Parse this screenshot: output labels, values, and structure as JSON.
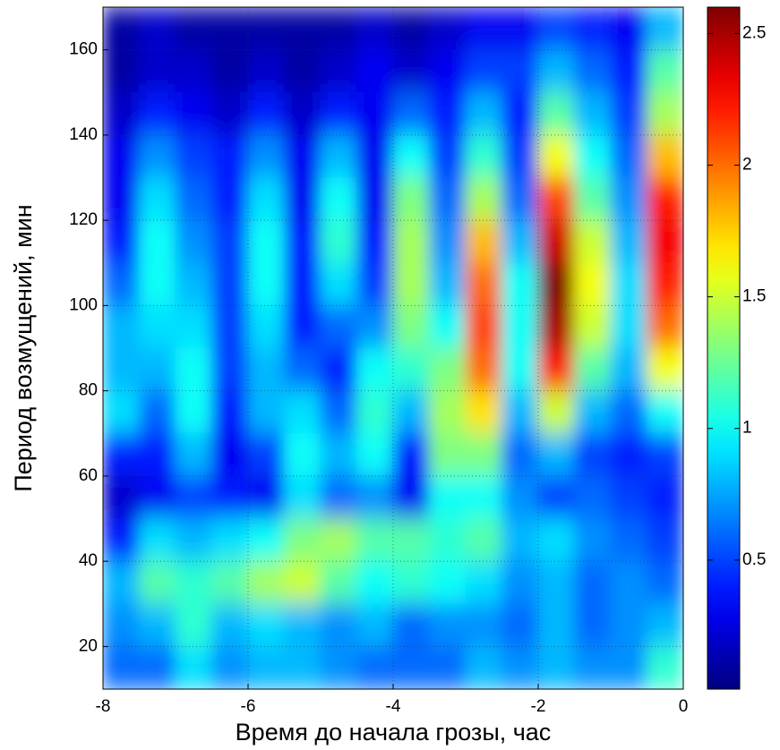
{
  "chart_data": {
    "type": "heatmap",
    "xlabel": "Время до начала грозы, час",
    "ylabel": "Период возмущений, мин",
    "xlim": [
      -8,
      0
    ],
    "xticks": [
      -8,
      -6,
      -4,
      -2,
      0
    ],
    "ylim": [
      10,
      170
    ],
    "yticks": [
      20,
      40,
      60,
      80,
      100,
      120,
      140,
      160
    ],
    "grid": true,
    "colormap": "jet",
    "clim": [
      0.01,
      2.6
    ],
    "cticks": [
      0.5,
      1,
      1.5,
      2,
      2.5
    ],
    "x": [
      -7.75,
      -7.25,
      -6.75,
      -6.25,
      -5.75,
      -5.25,
      -4.75,
      -4.25,
      -3.75,
      -3.25,
      -2.75,
      -2.25,
      -1.75,
      -1.25,
      -0.75,
      -0.25
    ],
    "y": [
      165,
      155,
      145,
      135,
      125,
      115,
      105,
      95,
      85,
      75,
      65,
      55,
      45,
      35,
      25,
      15
    ],
    "z": [
      [
        0.1,
        0.2,
        0.1,
        0.1,
        0.1,
        0.1,
        0.1,
        0.2,
        0.1,
        0.2,
        0.3,
        0.3,
        0.5,
        0.4,
        0.3,
        0.8
      ],
      [
        0.1,
        0.2,
        0.2,
        0.1,
        0.2,
        0.1,
        0.2,
        0.3,
        0.2,
        0.3,
        0.5,
        0.5,
        0.8,
        0.6,
        0.4,
        1.2
      ],
      [
        0.2,
        0.4,
        0.3,
        0.2,
        0.4,
        0.2,
        0.4,
        0.3,
        0.6,
        0.4,
        0.8,
        0.4,
        1.2,
        0.8,
        0.5,
        1.4
      ],
      [
        0.3,
        0.7,
        0.5,
        0.4,
        0.7,
        0.3,
        0.8,
        0.3,
        1.0,
        0.5,
        1.1,
        0.5,
        1.6,
        1.0,
        0.6,
        1.8
      ],
      [
        0.3,
        0.9,
        0.6,
        0.4,
        0.9,
        0.3,
        1.0,
        0.3,
        1.3,
        0.6,
        1.4,
        0.6,
        2.1,
        1.2,
        0.7,
        2.2
      ],
      [
        0.4,
        1.0,
        0.7,
        0.5,
        1.0,
        0.4,
        1.1,
        0.4,
        1.4,
        0.7,
        1.8,
        0.8,
        2.4,
        1.5,
        0.8,
        2.3
      ],
      [
        0.6,
        1.0,
        0.8,
        0.5,
        1.0,
        0.4,
        0.9,
        0.5,
        1.4,
        0.8,
        2.0,
        1.0,
        2.6,
        1.6,
        0.9,
        2.2
      ],
      [
        0.8,
        0.9,
        0.9,
        0.5,
        0.9,
        0.4,
        0.6,
        0.7,
        1.3,
        1.0,
        2.1,
        1.0,
        2.5,
        1.5,
        0.9,
        2.0
      ],
      [
        0.8,
        0.8,
        1.0,
        0.5,
        0.8,
        0.6,
        0.4,
        1.0,
        1.1,
        1.3,
        2.0,
        1.0,
        2.2,
        1.2,
        0.8,
        1.6
      ],
      [
        0.9,
        0.6,
        1.0,
        0.4,
        0.8,
        0.9,
        0.6,
        1.1,
        0.8,
        1.4,
        1.7,
        0.8,
        1.5,
        0.8,
        0.6,
        1.0
      ],
      [
        0.4,
        0.4,
        0.8,
        0.3,
        0.5,
        1.0,
        0.8,
        1.0,
        0.4,
        1.3,
        1.3,
        0.6,
        0.8,
        0.5,
        0.4,
        0.5
      ],
      [
        0.2,
        0.3,
        0.5,
        0.4,
        0.3,
        0.9,
        0.6,
        0.7,
        0.3,
        1.0,
        1.0,
        0.7,
        0.5,
        0.6,
        0.5,
        0.4
      ],
      [
        0.4,
        0.9,
        0.8,
        0.9,
        1.0,
        1.3,
        1.4,
        1.2,
        1.2,
        1.1,
        1.2,
        0.8,
        0.9,
        0.7,
        0.6,
        0.5
      ],
      [
        0.8,
        1.2,
        1.1,
        1.2,
        1.4,
        1.5,
        1.2,
        1.0,
        1.1,
        1.0,
        0.9,
        0.7,
        0.8,
        0.6,
        0.7,
        0.6
      ],
      [
        0.7,
        0.8,
        1.1,
        0.8,
        0.9,
        0.8,
        0.7,
        0.8,
        0.6,
        0.7,
        0.7,
        0.6,
        0.8,
        0.6,
        0.7,
        0.8
      ],
      [
        0.6,
        0.6,
        0.9,
        0.7,
        0.8,
        0.8,
        0.7,
        0.6,
        0.6,
        0.6,
        0.8,
        0.7,
        0.8,
        0.7,
        0.7,
        1.1
      ]
    ]
  }
}
